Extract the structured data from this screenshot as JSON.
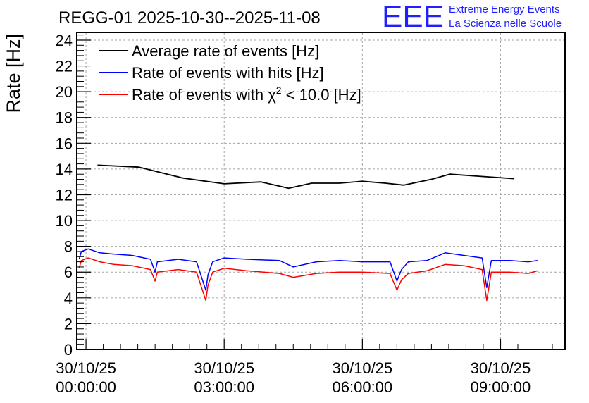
{
  "header": {
    "logo_text": "EEE",
    "org_line1": "Extreme Energy Events",
    "org_line2": "La Scienza nelle Scuole",
    "logo_color": "#1f1fff"
  },
  "chart_data": {
    "type": "line",
    "title": "REGG-01 2025-10-30--2025-11-08",
    "ylabel": "Rate [Hz]",
    "xlabel": "",
    "ylim": [
      0,
      24.6
    ],
    "xlim": [
      -0.2,
      10.4
    ],
    "yticks": [
      "0",
      "2",
      "4",
      "6",
      "8",
      "10",
      "12",
      "14",
      "16",
      "18",
      "20",
      "22",
      "24"
    ],
    "xticks": [
      {
        "x": 0,
        "line1": "30/10/25",
        "line2": "00:00:00"
      },
      {
        "x": 3,
        "line1": "30/10/25",
        "line2": "03:00:00"
      },
      {
        "x": 6,
        "line1": "30/10/25",
        "line2": "06:00:00"
      },
      {
        "x": 9,
        "line1": "30/10/25",
        "line2": "09:00:00"
      }
    ],
    "grid": true,
    "legend_position": "top-left",
    "series": [
      {
        "name": "Average rate of events [Hz]",
        "color": "#000000",
        "x": [
          0.25,
          1.15,
          2.1,
          3.0,
          3.8,
          4.4,
          4.9,
          5.5,
          6.0,
          6.5,
          6.9,
          7.5,
          7.9,
          8.5,
          9.3
        ],
        "y": [
          14.3,
          14.15,
          13.3,
          12.85,
          13.0,
          12.5,
          12.9,
          12.9,
          13.05,
          12.9,
          12.75,
          13.2,
          13.6,
          13.45,
          13.25
        ]
      },
      {
        "name": "Rate of events with hits [Hz]",
        "color": "#0000ff",
        "x": [
          -0.15,
          -0.1,
          0.05,
          0.3,
          0.6,
          1.0,
          1.4,
          1.5,
          1.55,
          2.0,
          2.4,
          2.6,
          2.65,
          2.75,
          3.0,
          3.5,
          4.2,
          4.5,
          5.0,
          5.5,
          6.0,
          6.6,
          6.75,
          6.85,
          7.0,
          7.4,
          7.8,
          8.2,
          8.6,
          8.7,
          8.8,
          9.2,
          9.6,
          9.8
        ],
        "y": [
          7.0,
          7.6,
          7.8,
          7.5,
          7.4,
          7.3,
          7.0,
          6.0,
          6.8,
          7.0,
          6.8,
          4.6,
          5.8,
          6.8,
          7.1,
          7.0,
          6.9,
          6.4,
          6.8,
          6.9,
          6.8,
          6.8,
          5.3,
          6.2,
          6.8,
          6.9,
          7.5,
          7.3,
          7.1,
          4.8,
          6.9,
          6.9,
          6.8,
          6.9
        ]
      },
      {
        "name": "Rate of events with χ² < 10.0 [Hz]",
        "color": "#ff0000",
        "x": [
          -0.15,
          -0.1,
          0.05,
          0.3,
          0.6,
          1.0,
          1.4,
          1.5,
          1.55,
          2.0,
          2.4,
          2.6,
          2.65,
          2.75,
          3.0,
          3.5,
          4.2,
          4.5,
          5.0,
          5.5,
          6.0,
          6.6,
          6.75,
          6.85,
          7.0,
          7.4,
          7.8,
          8.2,
          8.6,
          8.7,
          8.8,
          9.2,
          9.6,
          9.8
        ],
        "y": [
          6.3,
          6.9,
          7.1,
          6.8,
          6.6,
          6.5,
          6.2,
          5.3,
          6.0,
          6.2,
          6.0,
          3.8,
          5.0,
          6.0,
          6.3,
          6.1,
          5.9,
          5.6,
          5.9,
          6.0,
          6.0,
          5.9,
          4.6,
          5.4,
          5.9,
          6.1,
          6.6,
          6.5,
          6.2,
          3.8,
          6.0,
          6.0,
          5.9,
          6.1
        ]
      }
    ],
    "legend": [
      {
        "text": "Average rate of events [Hz]",
        "color": "#000000"
      },
      {
        "text": "Rate of events with hits [Hz]",
        "color": "#0000ff"
      },
      {
        "text_before": "Rate of events with χ",
        "sup": "2",
        "text_after": " < 10.0 [Hz]",
        "color": "#ff0000"
      }
    ]
  }
}
